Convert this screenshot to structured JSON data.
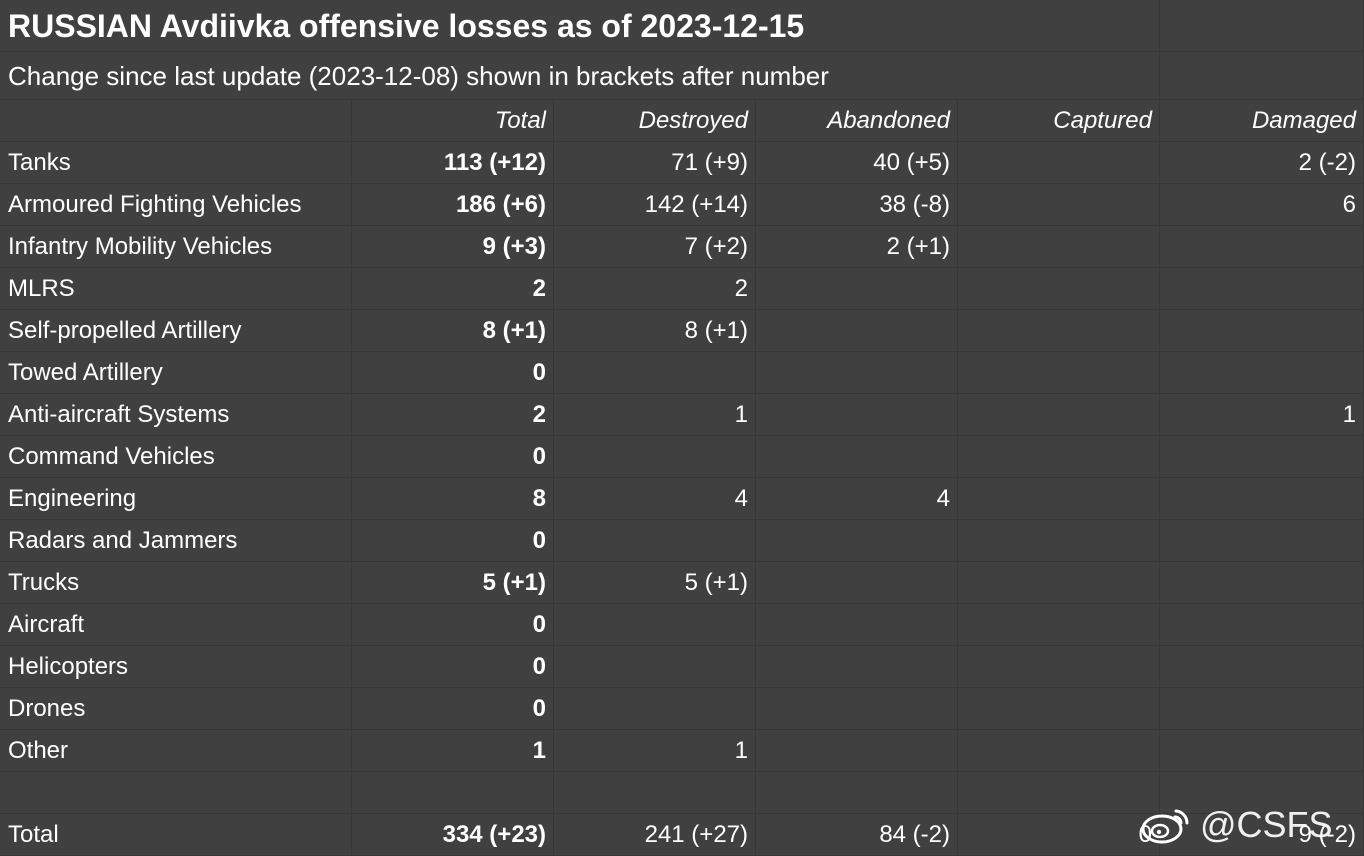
{
  "sheet": {
    "title": "RUSSIAN Avdiivka offensive losses as of 2023-12-15",
    "subtitle": "Change since last update (2023-12-08) shown in brackets after number",
    "headers": [
      "",
      "Total",
      "Destroyed",
      "Abandoned",
      "Captured",
      "Damaged"
    ],
    "rows": [
      {
        "label": "Tanks",
        "total": "113 (+12)",
        "destroyed": "71 (+9)",
        "abandoned": "40 (+5)",
        "captured": "",
        "damaged": "2 (-2)"
      },
      {
        "label": "Armoured Fighting Vehicles",
        "total": "186 (+6)",
        "destroyed": "142 (+14)",
        "abandoned": "38 (-8)",
        "captured": "",
        "damaged": "6"
      },
      {
        "label": "Infantry Mobility Vehicles",
        "total": "9 (+3)",
        "destroyed": "7 (+2)",
        "abandoned": "2 (+1)",
        "captured": "",
        "damaged": ""
      },
      {
        "label": "MLRS",
        "total": "2",
        "destroyed": "2",
        "abandoned": "",
        "captured": "",
        "damaged": ""
      },
      {
        "label": "Self-propelled Artillery",
        "total": "8 (+1)",
        "destroyed": "8 (+1)",
        "abandoned": "",
        "captured": "",
        "damaged": ""
      },
      {
        "label": "Towed Artillery",
        "total": "0",
        "destroyed": "",
        "abandoned": "",
        "captured": "",
        "damaged": ""
      },
      {
        "label": "Anti-aircraft Systems",
        "total": "2",
        "destroyed": "1",
        "abandoned": "",
        "captured": "",
        "damaged": "1"
      },
      {
        "label": "Command Vehicles",
        "total": "0",
        "destroyed": "",
        "abandoned": "",
        "captured": "",
        "damaged": ""
      },
      {
        "label": "Engineering",
        "total": "8",
        "destroyed": "4",
        "abandoned": "4",
        "captured": "",
        "damaged": ""
      },
      {
        "label": "Radars and Jammers",
        "total": "0",
        "destroyed": "",
        "abandoned": "",
        "captured": "",
        "damaged": ""
      },
      {
        "label": "Trucks",
        "total": "5 (+1)",
        "destroyed": "5 (+1)",
        "abandoned": "",
        "captured": "",
        "damaged": ""
      },
      {
        "label": "Aircraft",
        "total": "0",
        "destroyed": "",
        "abandoned": "",
        "captured": "",
        "damaged": ""
      },
      {
        "label": "Helicopters",
        "total": "0",
        "destroyed": "",
        "abandoned": "",
        "captured": "",
        "damaged": ""
      },
      {
        "label": "Drones",
        "total": "0",
        "destroyed": "",
        "abandoned": "",
        "captured": "",
        "damaged": ""
      },
      {
        "label": "Other",
        "total": "1",
        "destroyed": "1",
        "abandoned": "",
        "captured": "",
        "damaged": ""
      },
      {
        "label": "",
        "total": "",
        "destroyed": "",
        "abandoned": "",
        "captured": "",
        "damaged": ""
      },
      {
        "label": "Total",
        "total": "334 (+23)",
        "destroyed": "241 (+27)",
        "abandoned": "84 (-2)",
        "captured": "0",
        "damaged": "9 (-2)"
      }
    ]
  },
  "watermark": {
    "text": "@CSFS",
    "icon": "weibo-logo-icon"
  },
  "colors": {
    "background": "#404040",
    "gridline": "#363636",
    "text": "#ffffff"
  }
}
